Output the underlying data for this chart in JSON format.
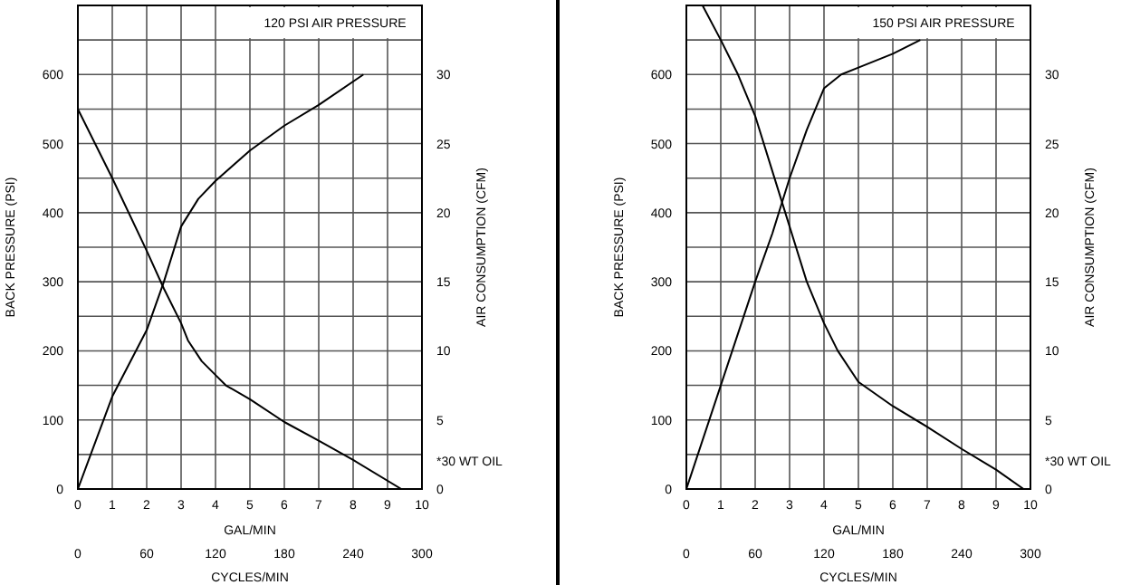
{
  "chart_data": [
    {
      "type": "line",
      "title": "120 PSI AIR PRESSURE",
      "xlabel": "GAL/MIN",
      "x2label": "CYCLES/MIN",
      "ylabel": "BACK PRESSURE  (PSI)",
      "y2label": "AIR CONSUMPTION  (CFM)",
      "annotations": [
        "*30 WT OIL"
      ],
      "xlim": [
        0,
        10
      ],
      "xticks": [
        0,
        1,
        2,
        3,
        4,
        5,
        6,
        7,
        8,
        9,
        10
      ],
      "x2lim": [
        0,
        300
      ],
      "x2ticks": [
        0,
        60,
        120,
        180,
        240,
        300
      ],
      "ylim": [
        0,
        700
      ],
      "yticks": [
        0,
        {
          "value": 50,
          "label": null
        },
        100,
        {
          "value": 150,
          "label": null
        },
        200,
        {
          "value": 250,
          "label": null
        },
        300,
        {
          "value": 350,
          "label": null
        },
        400,
        {
          "value": 450,
          "label": null
        },
        500,
        {
          "value": 550,
          "label": null
        },
        600,
        {
          "value": 650,
          "label": null
        }
      ],
      "y2lim": [
        0,
        35
      ],
      "y2ticks": [
        0,
        5,
        10,
        15,
        20,
        25,
        30
      ],
      "grid": true,
      "marker": "none",
      "line_style": "solid",
      "series": [
        {
          "color": "#000000",
          "x": [
            0,
            1,
            2,
            2.5,
            3,
            3.2,
            3.6,
            4,
            4.3,
            5,
            6,
            7,
            8,
            9.4
          ],
          "values": [
            550,
            450,
            345,
            290,
            240,
            215,
            185,
            165,
            150,
            130,
            97,
            70,
            42,
            0
          ]
        },
        {
          "color": "#000000",
          "axis": "y2",
          "x": [
            0,
            1,
            2,
            2.5,
            3,
            3.5,
            4,
            5,
            6,
            7,
            8.3
          ],
          "values": [
            0,
            6.7,
            11.5,
            15,
            19,
            21,
            22.3,
            24.5,
            26.3,
            27.8,
            30
          ]
        }
      ]
    },
    {
      "type": "line",
      "title": "150 PSI AIR PRESSURE",
      "xlabel": "GAL/MIN",
      "x2label": "CYCLES/MIN",
      "ylabel": "BACK PRESSURE  (PSI)",
      "y2label": "AIR CONSUMPTION  (CFM)",
      "annotations": [
        "*30 WT OIL"
      ],
      "xlim": [
        0,
        10
      ],
      "xticks": [
        0,
        1,
        2,
        3,
        4,
        5,
        6,
        7,
        8,
        9,
        10
      ],
      "x2lim": [
        0,
        300
      ],
      "x2ticks": [
        0,
        60,
        120,
        180,
        240,
        300
      ],
      "ylim": [
        0,
        700
      ],
      "yticks": [
        0,
        {
          "value": 50,
          "label": null
        },
        100,
        {
          "value": 150,
          "label": null
        },
        200,
        {
          "value": 250,
          "label": null
        },
        300,
        {
          "value": 350,
          "label": null
        },
        400,
        {
          "value": 450,
          "label": null
        },
        500,
        {
          "value": 550,
          "label": null
        },
        600,
        {
          "value": 650,
          "label": null
        }
      ],
      "y2lim": [
        0,
        35
      ],
      "y2ticks": [
        0,
        5,
        10,
        15,
        20,
        25,
        30
      ],
      "grid": true,
      "marker": "none",
      "line_style": "solid",
      "series": [
        {
          "color": "#000000",
          "x": [
            0.47,
            1,
            1.5,
            2,
            2.5,
            3,
            3.5,
            4,
            4.4,
            5,
            6,
            7,
            8,
            9,
            9.8
          ],
          "values": [
            700,
            650,
            600,
            540,
            460,
            380,
            300,
            240,
            200,
            155,
            120,
            90,
            58,
            28,
            0
          ]
        },
        {
          "color": "#000000",
          "axis": "y2",
          "x": [
            0,
            1,
            2,
            2.5,
            3,
            3.5,
            4,
            4.5,
            5,
            6,
            6.8
          ],
          "values": [
            0,
            7.5,
            15,
            18.5,
            22.5,
            26,
            29,
            30,
            30.5,
            31.5,
            32.5
          ]
        }
      ]
    }
  ]
}
